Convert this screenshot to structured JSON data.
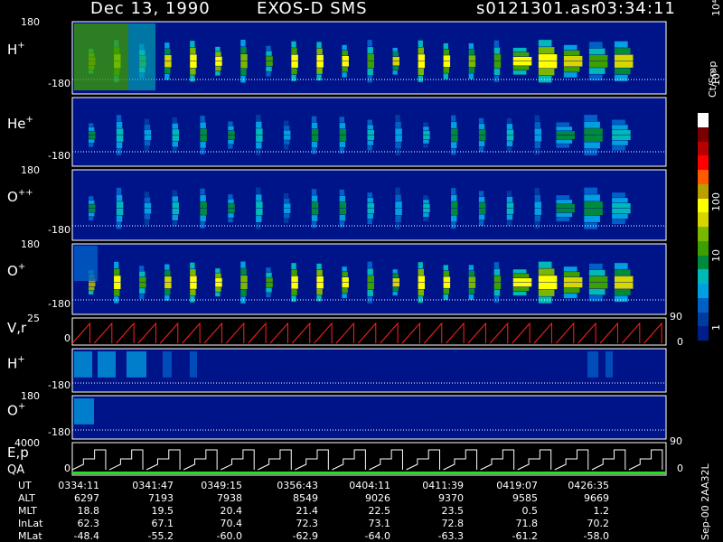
{
  "header": {
    "date": "Dec 13, 1990",
    "instrument": "EXOS-D SMS",
    "file": "s0121301.asr",
    "time": "03:34:11"
  },
  "panels": [
    {
      "id": "p1",
      "label": "H",
      "sup": "+",
      "ymax": "180",
      "ymin": "-180"
    },
    {
      "id": "p2",
      "label": "He",
      "sup": "+",
      "ymax": "",
      "ymin": "-180"
    },
    {
      "id": "p3",
      "label": "O",
      "sup": "++",
      "ymax": "180",
      "ymin": "-180"
    },
    {
      "id": "p4",
      "label": "O",
      "sup": "+",
      "ymax": "180",
      "ymin": "-180"
    },
    {
      "id": "p5",
      "label": "V,r",
      "sup": "",
      "ymax": "25",
      "ymin": "0"
    },
    {
      "id": "p6",
      "label": "H",
      "sup": "+",
      "ymax": "",
      "ymin": "-180"
    },
    {
      "id": "p7",
      "label": "O",
      "sup": "+",
      "ymax": "180",
      "ymin": "-180"
    },
    {
      "id": "p8",
      "label": "E,p",
      "sup": "",
      "ymax": "4000",
      "ymin": "0"
    }
  ],
  "qa_label": "QA",
  "right_axis": {
    "vr_top": "90",
    "vr_bottom": "0",
    "ep_top": "90",
    "ep_bottom": "0"
  },
  "colorbar": {
    "unit": "Ct/Smp",
    "ticks": [
      "10⁴",
      "10³",
      "100",
      "10",
      "1"
    ],
    "colors": [
      "#ffffff",
      "#7a0000",
      "#b80000",
      "#ff0000",
      "#ff5a00",
      "#b8a000",
      "#ffff00",
      "#d6d600",
      "#7ab800",
      "#3ca000",
      "#008a3c",
      "#00b8b8",
      "#00a0e0",
      "#0060c8",
      "#003ca0",
      "#001e8a"
    ]
  },
  "side_stamp": "Sep-00 2AA32L",
  "table": {
    "rows": [
      {
        "label": "UT",
        "values": [
          "0334:11",
          "0341:47",
          "0349:15",
          "0356:43",
          "0404:11",
          "0411:39",
          "0419:07",
          "0426:35"
        ]
      },
      {
        "label": "ALT",
        "values": [
          "6297",
          "7193",
          "7938",
          "8549",
          "9026",
          "9370",
          "9585",
          "9669"
        ]
      },
      {
        "label": "MLT",
        "values": [
          "18.8",
          "19.5",
          "20.4",
          "21.4",
          "22.5",
          "23.5",
          "0.5",
          "1.2"
        ]
      },
      {
        "label": "InLat",
        "values": [
          "62.3",
          "67.1",
          "70.4",
          "72.3",
          "73.1",
          "72.8",
          "71.8",
          "70.2"
        ]
      },
      {
        "label": "MLat",
        "values": [
          "-48.4",
          "-55.2",
          "-60.0",
          "-62.9",
          "-64.0",
          "-63.3",
          "-61.2",
          "-58.0"
        ]
      }
    ]
  },
  "chart_data": {
    "type": "heatmap",
    "title": "Dec 13, 1990   EXOS-D SMS",
    "x_ticks_ut": [
      "0334:11",
      "0341:47",
      "0349:15",
      "0356:43",
      "0404:11",
      "0411:39",
      "0419:07",
      "0426:35"
    ],
    "y_range_pitch": [
      -180,
      180
    ],
    "colorbar_scale": "log",
    "colorbar_range": [
      1,
      10000
    ],
    "series": [
      {
        "name": "H+",
        "spin_bursts": 22,
        "peak_count": "~300"
      },
      {
        "name": "He+",
        "spin_bursts": 20,
        "peak_count": "~30"
      },
      {
        "name": "O++",
        "spin_bursts": 20,
        "peak_count": "~30"
      },
      {
        "name": "O+",
        "spin_bursts": 22,
        "peak_count": "~300"
      },
      {
        "name": "V,r",
        "shape": "sawtooth",
        "cycles": 27,
        "range": [
          0,
          25
        ]
      },
      {
        "name": "H+ (low)",
        "peak_count": "~10"
      },
      {
        "name": "O+ (low)",
        "peak_count": "~5"
      },
      {
        "name": "E,p",
        "shape": "stepped sawtooth",
        "cycles": 16,
        "range": [
          0,
          4000
        ]
      }
    ]
  }
}
